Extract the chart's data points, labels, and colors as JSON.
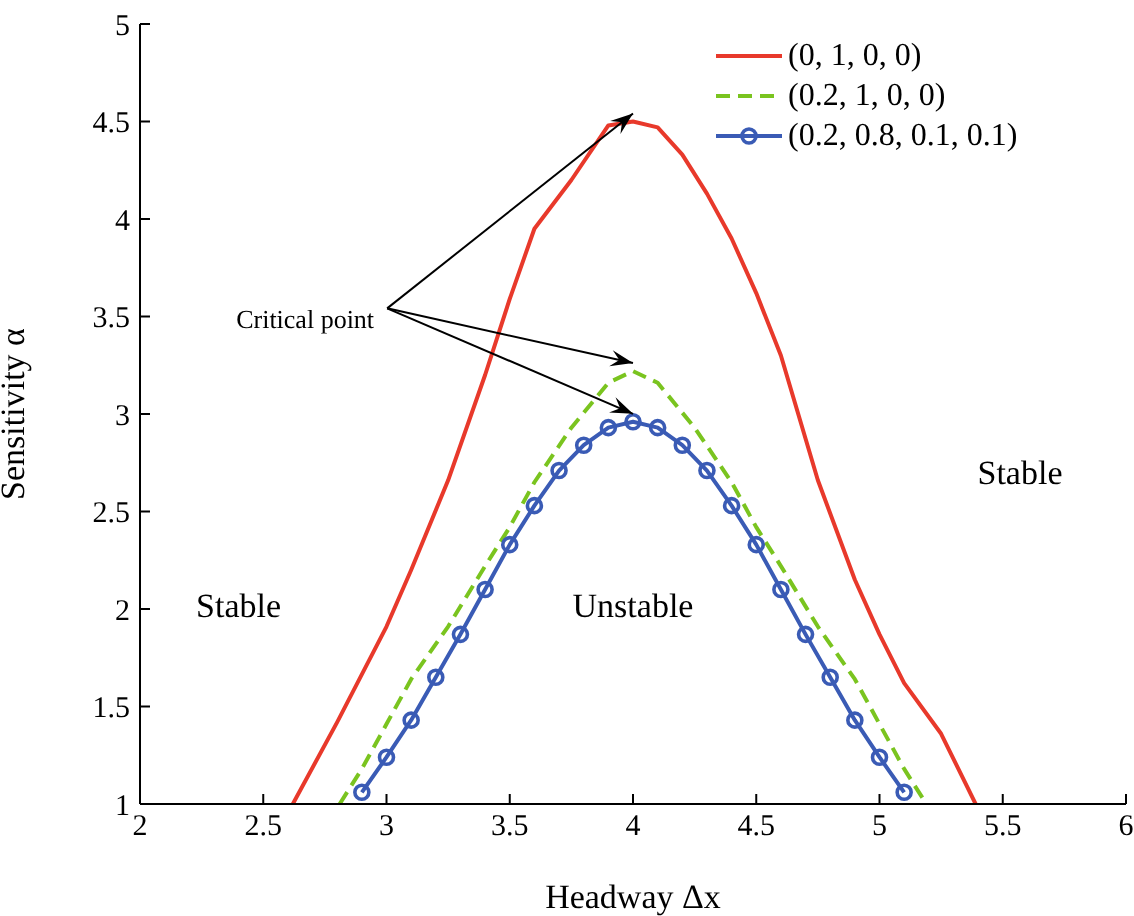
{
  "chart_data": {
    "type": "line",
    "xlabel": "Headway Δx",
    "ylabel": "Sensitivity α",
    "xlim": [
      2,
      6
    ],
    "xticks": [
      2,
      2.5,
      3,
      3.5,
      4,
      4.5,
      5,
      5.5,
      6
    ],
    "ylim": [
      1,
      5
    ],
    "yticks": [
      1,
      1.5,
      2,
      2.5,
      3,
      3.5,
      4,
      4.5,
      5
    ],
    "grid": false,
    "legend": "top right",
    "marker": "none",
    "series": [
      {
        "name": "(0, 1, 0, 0)",
        "color": "#e8392b",
        "line_style": "solid",
        "x": [
          2.62,
          2.8,
          3.0,
          3.1,
          3.25,
          3.4,
          3.5,
          3.6,
          3.75,
          3.9,
          4.0,
          4.1,
          4.2,
          4.3,
          4.4,
          4.5,
          4.6,
          4.75,
          4.9,
          5.0,
          5.1,
          5.25,
          5.39
        ],
        "values": [
          1,
          1.42,
          1.91,
          2.2,
          2.66,
          3.2,
          3.59,
          3.95,
          4.2,
          4.48,
          4.5,
          4.47,
          4.33,
          4.13,
          3.9,
          3.62,
          3.3,
          2.66,
          2.15,
          1.87,
          1.62,
          1.36,
          1
        ]
      },
      {
        "name": "(0.2, 1, 0, 0)",
        "color": "#7ac41f",
        "line_style": "dashed",
        "x": [
          2.81,
          2.9,
          3.0,
          3.1,
          3.25,
          3.4,
          3.5,
          3.6,
          3.75,
          3.9,
          4.0,
          4.1,
          4.25,
          4.4,
          4.5,
          4.6,
          4.75,
          4.9,
          5.0,
          5.1,
          5.19
        ],
        "values": [
          1,
          1.18,
          1.41,
          1.64,
          1.91,
          2.22,
          2.42,
          2.65,
          2.93,
          3.16,
          3.22,
          3.16,
          2.93,
          2.65,
          2.42,
          2.22,
          1.91,
          1.64,
          1.41,
          1.18,
          1
        ]
      },
      {
        "name": "(0.2, 0.8, 0.1, 0.1)",
        "color": "#3a5bb5",
        "line_style": "solid",
        "marker": "circle",
        "x": [
          2.9,
          3.0,
          3.1,
          3.2,
          3.3,
          3.4,
          3.5,
          3.6,
          3.7,
          3.8,
          3.9,
          4.0,
          4.1,
          4.2,
          4.3,
          4.4,
          4.5,
          4.6,
          4.7,
          4.8,
          4.9,
          5.0,
          5.1
        ],
        "values": [
          1.06,
          1.24,
          1.43,
          1.65,
          1.87,
          2.1,
          2.33,
          2.53,
          2.71,
          2.84,
          2.93,
          2.96,
          2.93,
          2.84,
          2.71,
          2.53,
          2.33,
          2.1,
          1.87,
          1.65,
          1.43,
          1.24,
          1.06
        ]
      }
    ],
    "annotations": [
      {
        "text": "Critical point",
        "x": 4,
        "y": 4.5
      },
      "Stable",
      "Unstable",
      "Stable"
    ]
  }
}
